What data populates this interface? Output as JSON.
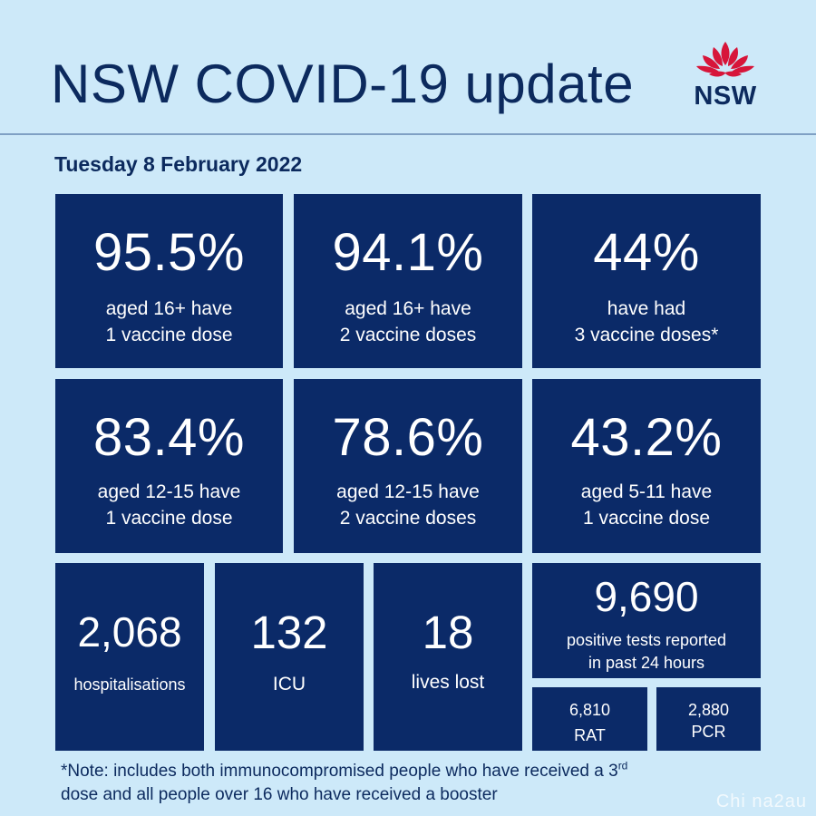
{
  "header": {
    "title": "NSW COVID-19 update",
    "logo_text": "NSW",
    "logo_color": "#d7153a"
  },
  "date": "Tuesday 8 February 2022",
  "colors": {
    "background": "#cde9f9",
    "tile": "#0b2a68",
    "text": "#0c2a5e"
  },
  "vaccination": [
    {
      "value": "95.5%",
      "line1": "aged 16+ have",
      "line2": "1 vaccine dose"
    },
    {
      "value": "94.1%",
      "line1": "aged 16+ have",
      "line2": "2 vaccine doses"
    },
    {
      "value": "44%",
      "line1": "have had",
      "line2": "3 vaccine doses*"
    },
    {
      "value": "83.4%",
      "line1": "aged 12-15 have",
      "line2": "1 vaccine dose"
    },
    {
      "value": "78.6%",
      "line1": "aged 12-15 have",
      "line2": "2 vaccine doses"
    },
    {
      "value": "43.2%",
      "line1": "aged 5-11 have",
      "line2": "1 vaccine dose"
    }
  ],
  "stats": {
    "hospitalisations": {
      "value": "2,068",
      "label": "hospitalisations"
    },
    "icu": {
      "value": "132",
      "label": "ICU"
    },
    "deaths": {
      "value": "18",
      "label": "lives lost"
    },
    "positive_tests": {
      "value": "9,690",
      "line1": "positive tests reported",
      "line2": "in past 24 hours"
    },
    "rat": {
      "value": "6,810",
      "label": "RAT"
    },
    "pcr": {
      "value": "2,880",
      "label": "PCR"
    }
  },
  "note": {
    "line1": "*Note: includes both immunocompromised  people who have received a 3",
    "sup": "rd",
    "line2": "dose and all people over 16 who have received a booster"
  },
  "watermark": "Chi na2au"
}
